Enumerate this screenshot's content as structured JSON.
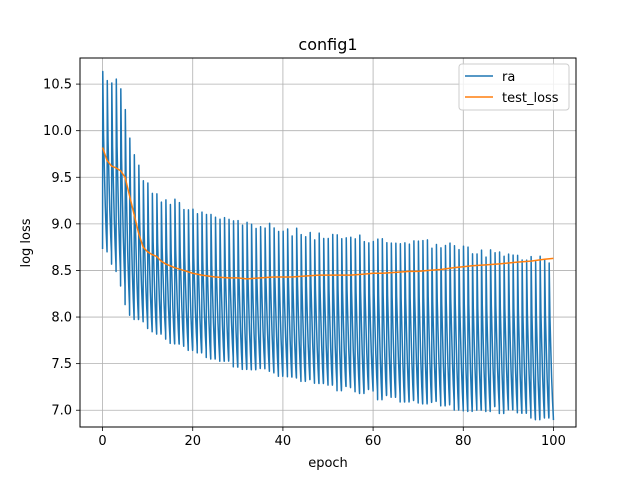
{
  "chart_data": {
    "type": "line",
    "title": "config1",
    "xlabel": "epoch",
    "ylabel": "log loss",
    "xlim": [
      -5,
      105
    ],
    "ylim": [
      6.82,
      10.78
    ],
    "xticks": [
      0,
      20,
      40,
      60,
      80,
      100
    ],
    "yticks": [
      7.0,
      7.5,
      8.0,
      8.5,
      9.0,
      9.5,
      10.0,
      10.5
    ],
    "grid": true,
    "legend_position": "top-right",
    "series": [
      {
        "name": "ra",
        "color": "#1f77b4",
        "style": "oscillating training loss, about 1 cycle per epoch",
        "upper_envelope": [
          [
            0,
            10.7
          ],
          [
            1,
            10.6
          ],
          [
            2,
            10.58
          ],
          [
            3,
            10.57
          ],
          [
            4,
            10.52
          ],
          [
            5,
            10.3
          ],
          [
            6,
            10.0
          ],
          [
            7,
            9.8
          ],
          [
            8,
            9.65
          ],
          [
            10,
            9.45
          ],
          [
            12,
            9.35
          ],
          [
            14,
            9.3
          ],
          [
            16,
            9.28
          ],
          [
            18,
            9.25
          ],
          [
            20,
            9.2
          ],
          [
            22,
            9.18
          ],
          [
            24,
            9.16
          ],
          [
            26,
            9.12
          ],
          [
            30,
            9.06
          ],
          [
            34,
            9.03
          ],
          [
            38,
            9.0
          ],
          [
            40,
            8.97
          ],
          [
            44,
            8.95
          ],
          [
            48,
            8.92
          ],
          [
            50,
            8.9
          ],
          [
            54,
            8.88
          ],
          [
            58,
            8.88
          ],
          [
            60,
            8.87
          ],
          [
            64,
            8.86
          ],
          [
            68,
            8.85
          ],
          [
            70,
            8.85
          ],
          [
            74,
            8.83
          ],
          [
            78,
            8.8
          ],
          [
            80,
            8.77
          ],
          [
            84,
            8.74
          ],
          [
            88,
            8.72
          ],
          [
            90,
            8.7
          ],
          [
            94,
            8.68
          ],
          [
            98,
            8.66
          ],
          [
            100,
            8.64
          ]
        ],
        "lower_envelope": [
          [
            0,
            8.7
          ],
          [
            1,
            8.6
          ],
          [
            2,
            8.5
          ],
          [
            3,
            8.4
          ],
          [
            4,
            8.25
          ],
          [
            5,
            8.1
          ],
          [
            6,
            8.0
          ],
          [
            7,
            7.95
          ],
          [
            8,
            7.9
          ],
          [
            10,
            7.83
          ],
          [
            12,
            7.78
          ],
          [
            14,
            7.72
          ],
          [
            16,
            7.68
          ],
          [
            18,
            7.64
          ],
          [
            20,
            7.6
          ],
          [
            22,
            7.57
          ],
          [
            24,
            7.54
          ],
          [
            26,
            7.5
          ],
          [
            30,
            7.45
          ],
          [
            34,
            7.4
          ],
          [
            38,
            7.35
          ],
          [
            40,
            7.32
          ],
          [
            44,
            7.27
          ],
          [
            48,
            7.23
          ],
          [
            50,
            7.2
          ],
          [
            54,
            7.17
          ],
          [
            58,
            7.14
          ],
          [
            60,
            7.12
          ],
          [
            64,
            7.09
          ],
          [
            68,
            7.06
          ],
          [
            70,
            7.04
          ],
          [
            74,
            7.02
          ],
          [
            78,
            7.0
          ],
          [
            80,
            6.98
          ],
          [
            84,
            6.96
          ],
          [
            88,
            6.94
          ],
          [
            90,
            6.93
          ],
          [
            94,
            6.91
          ],
          [
            98,
            6.88
          ],
          [
            100,
            6.86
          ]
        ]
      },
      {
        "name": "test_loss",
        "color": "#ff7f0e",
        "points": [
          [
            0,
            9.82
          ],
          [
            0.5,
            9.75
          ],
          [
            1,
            9.68
          ],
          [
            2,
            9.62
          ],
          [
            3,
            9.6
          ],
          [
            4,
            9.57
          ],
          [
            5,
            9.5
          ],
          [
            6,
            9.3
          ],
          [
            7,
            9.1
          ],
          [
            8,
            8.9
          ],
          [
            9,
            8.75
          ],
          [
            10,
            8.7
          ],
          [
            11,
            8.67
          ],
          [
            12,
            8.65
          ],
          [
            13,
            8.6
          ],
          [
            14,
            8.57
          ],
          [
            16,
            8.53
          ],
          [
            18,
            8.5
          ],
          [
            20,
            8.47
          ],
          [
            22,
            8.45
          ],
          [
            25,
            8.43
          ],
          [
            28,
            8.42
          ],
          [
            30,
            8.42
          ],
          [
            32,
            8.41
          ],
          [
            35,
            8.42
          ],
          [
            38,
            8.43
          ],
          [
            40,
            8.43
          ],
          [
            42,
            8.43
          ],
          [
            45,
            8.44
          ],
          [
            48,
            8.45
          ],
          [
            50,
            8.45
          ],
          [
            52,
            8.45
          ],
          [
            55,
            8.45
          ],
          [
            58,
            8.46
          ],
          [
            60,
            8.47
          ],
          [
            62,
            8.47
          ],
          [
            65,
            8.48
          ],
          [
            68,
            8.49
          ],
          [
            70,
            8.49
          ],
          [
            72,
            8.5
          ],
          [
            75,
            8.51
          ],
          [
            78,
            8.53
          ],
          [
            80,
            8.54
          ],
          [
            82,
            8.55
          ],
          [
            85,
            8.56
          ],
          [
            88,
            8.57
          ],
          [
            90,
            8.58
          ],
          [
            92,
            8.59
          ],
          [
            95,
            8.6
          ],
          [
            98,
            8.62
          ],
          [
            100,
            8.63
          ]
        ]
      }
    ]
  }
}
